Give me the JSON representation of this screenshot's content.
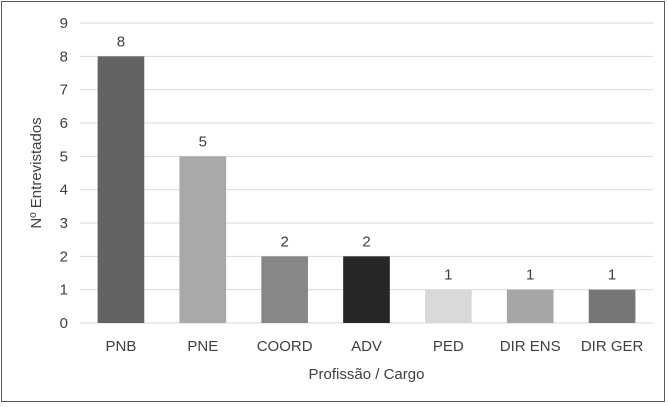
{
  "chart_data": {
    "type": "bar",
    "title": "",
    "xlabel": "Profissão / Cargo",
    "ylabel": "Nº Entrevistados",
    "ylim": [
      0,
      9
    ],
    "yticks": [
      "0",
      "1",
      "2",
      "3",
      "4",
      "5",
      "6",
      "7",
      "8",
      "9"
    ],
    "grid": true,
    "legend": "none",
    "categories": [
      "PNB",
      "PNE",
      "COORD",
      "ADV",
      "PED",
      "DIR ENS",
      "DIR GER"
    ],
    "values": [
      8,
      5,
      2,
      2,
      1,
      1,
      1
    ],
    "data_labels": [
      "8",
      "5",
      "2",
      "2",
      "1",
      "1",
      "1"
    ],
    "colors": [
      "#636363",
      "#a9a9a9",
      "#878787",
      "#262626",
      "#d9d9d9",
      "#a6a6a6",
      "#767676"
    ],
    "gridline_color": "#d9d9d9"
  }
}
